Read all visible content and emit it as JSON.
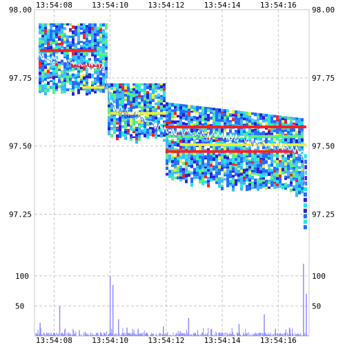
{
  "chart_data": [
    {
      "type": "heatmap",
      "name": "order-book-depth",
      "x_ticks": [
        "13:54:08",
        "13:54:10",
        "13:54:12",
        "13:54:14",
        "13:54:16"
      ],
      "y_ticks": [
        "98.00",
        "97.75",
        "97.50",
        "97.25"
      ],
      "y_tick_values": [
        98.0,
        97.75,
        97.5,
        97.25
      ],
      "ylim": [
        97.15,
        98.0
      ],
      "x_range_seconds": [
        7.3,
        17.1
      ],
      "mid_price_path": [
        {
          "t": 7.4,
          "p": 97.83
        },
        {
          "t": 8.0,
          "p": 97.82
        },
        {
          "t": 8.6,
          "p": 97.81
        },
        {
          "t": 9.2,
          "p": 97.8
        },
        {
          "t": 9.8,
          "p": 97.79
        },
        {
          "t": 10.0,
          "p": 97.66
        },
        {
          "t": 10.5,
          "p": 97.63
        },
        {
          "t": 11.0,
          "p": 97.62
        },
        {
          "t": 11.5,
          "p": 97.58
        },
        {
          "t": 12.0,
          "p": 97.56
        },
        {
          "t": 12.5,
          "p": 97.55
        },
        {
          "t": 13.0,
          "p": 97.55
        },
        {
          "t": 13.5,
          "p": 97.54
        },
        {
          "t": 14.0,
          "p": 97.54
        },
        {
          "t": 14.5,
          "p": 97.53
        },
        {
          "t": 15.0,
          "p": 97.52
        },
        {
          "t": 15.5,
          "p": 97.51
        },
        {
          "t": 16.0,
          "p": 97.5
        },
        {
          "t": 16.5,
          "p": 97.49
        },
        {
          "t": 16.9,
          "p": 97.47
        },
        {
          "t": 17.0,
          "p": 97.2
        }
      ],
      "colors": {
        "deep": "#2a1fd8",
        "blue": "#1e6cff",
        "light": "#3fb4ff",
        "cyan": "#22e6e6",
        "green": "#5ef07a",
        "yellow": "#e8f03c",
        "red": "#ff2020",
        "mid_line": "#ffffff"
      }
    },
    {
      "type": "bar",
      "name": "volume",
      "y_ticks": [
        "100",
        "50"
      ],
      "y_tick_values": [
        100,
        50
      ],
      "ylim": [
        0,
        125
      ],
      "x_ticks": [
        "13:54:08",
        "13:54:10",
        "13:54:12",
        "13:54:14",
        "13:54:16"
      ],
      "bar_color": "#8c8cff",
      "spikes": [
        {
          "t": 7.5,
          "v": 22
        },
        {
          "t": 8.2,
          "v": 50
        },
        {
          "t": 8.9,
          "v": 8
        },
        {
          "t": 10.0,
          "v": 100
        },
        {
          "t": 10.1,
          "v": 85
        },
        {
          "t": 10.3,
          "v": 28
        },
        {
          "t": 10.6,
          "v": 14
        },
        {
          "t": 11.0,
          "v": 12
        },
        {
          "t": 11.9,
          "v": 16
        },
        {
          "t": 12.5,
          "v": 8
        },
        {
          "t": 12.8,
          "v": 30
        },
        {
          "t": 13.6,
          "v": 12
        },
        {
          "t": 14.0,
          "v": 6
        },
        {
          "t": 14.6,
          "v": 20
        },
        {
          "t": 15.5,
          "v": 36
        },
        {
          "t": 15.9,
          "v": 12
        },
        {
          "t": 16.4,
          "v": 14
        },
        {
          "t": 16.9,
          "v": 120
        },
        {
          "t": 17.0,
          "v": 70
        }
      ]
    }
  ]
}
